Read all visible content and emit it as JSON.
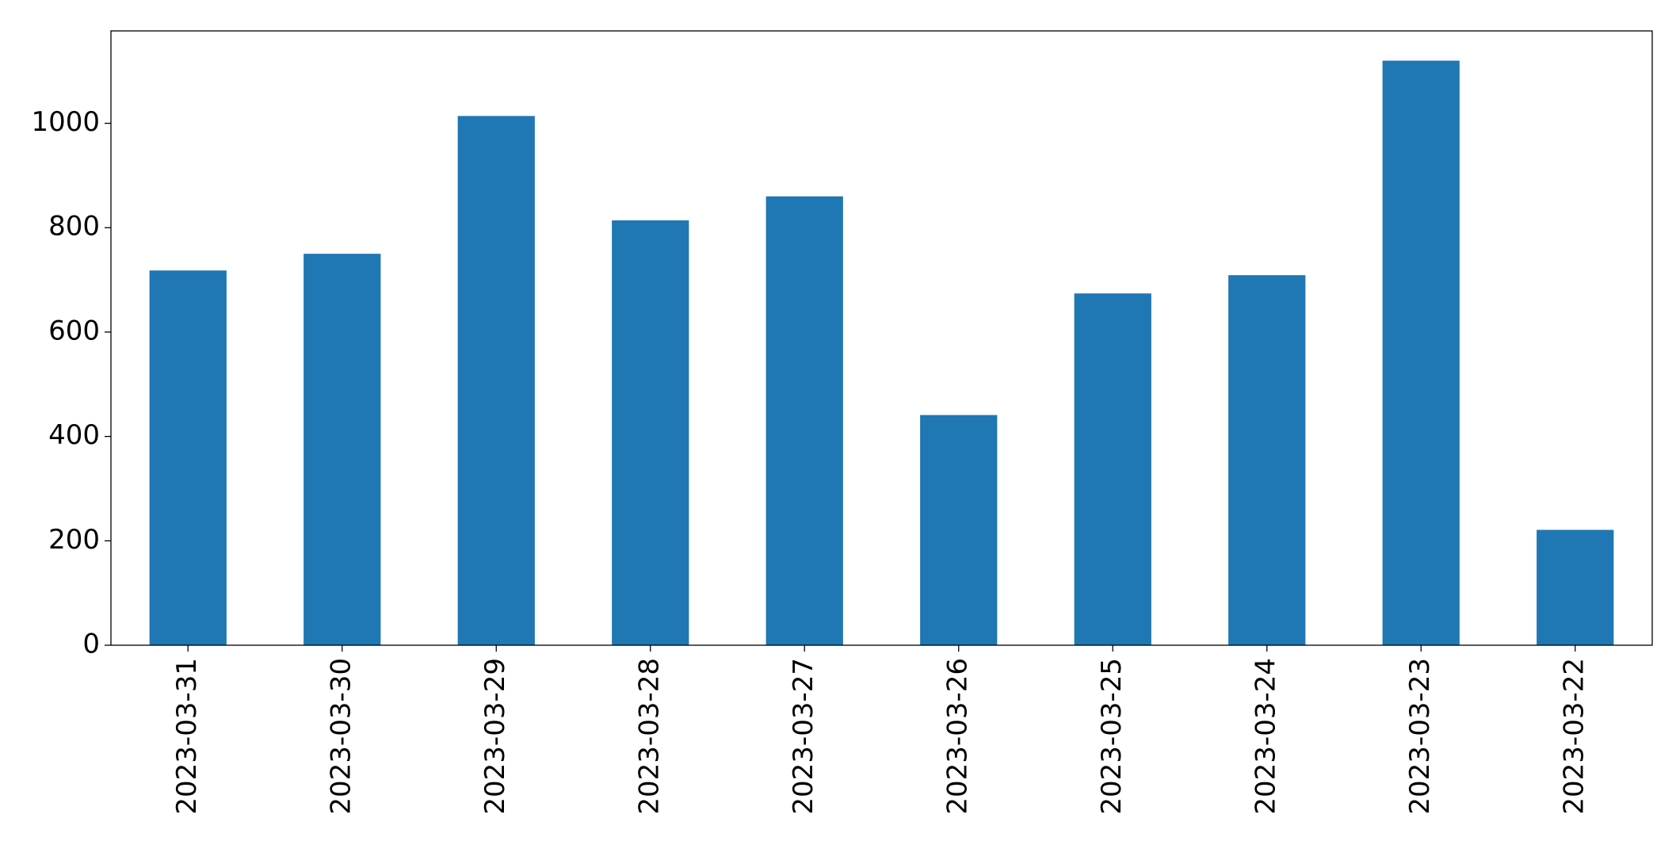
{
  "chart_data": {
    "type": "bar",
    "categories": [
      "2023-03-31",
      "2023-03-30",
      "2023-03-29",
      "2023-03-28",
      "2023-03-27",
      "2023-03-26",
      "2023-03-25",
      "2023-03-24",
      "2023-03-23",
      "2023-03-22"
    ],
    "values": [
      718,
      750,
      1014,
      814,
      860,
      441,
      674,
      709,
      1120,
      221
    ],
    "color": "#1f77b4",
    "ylim": [
      0,
      1177
    ],
    "yticks": [
      0,
      200,
      400,
      600,
      800,
      1000
    ],
    "grid": false
  }
}
